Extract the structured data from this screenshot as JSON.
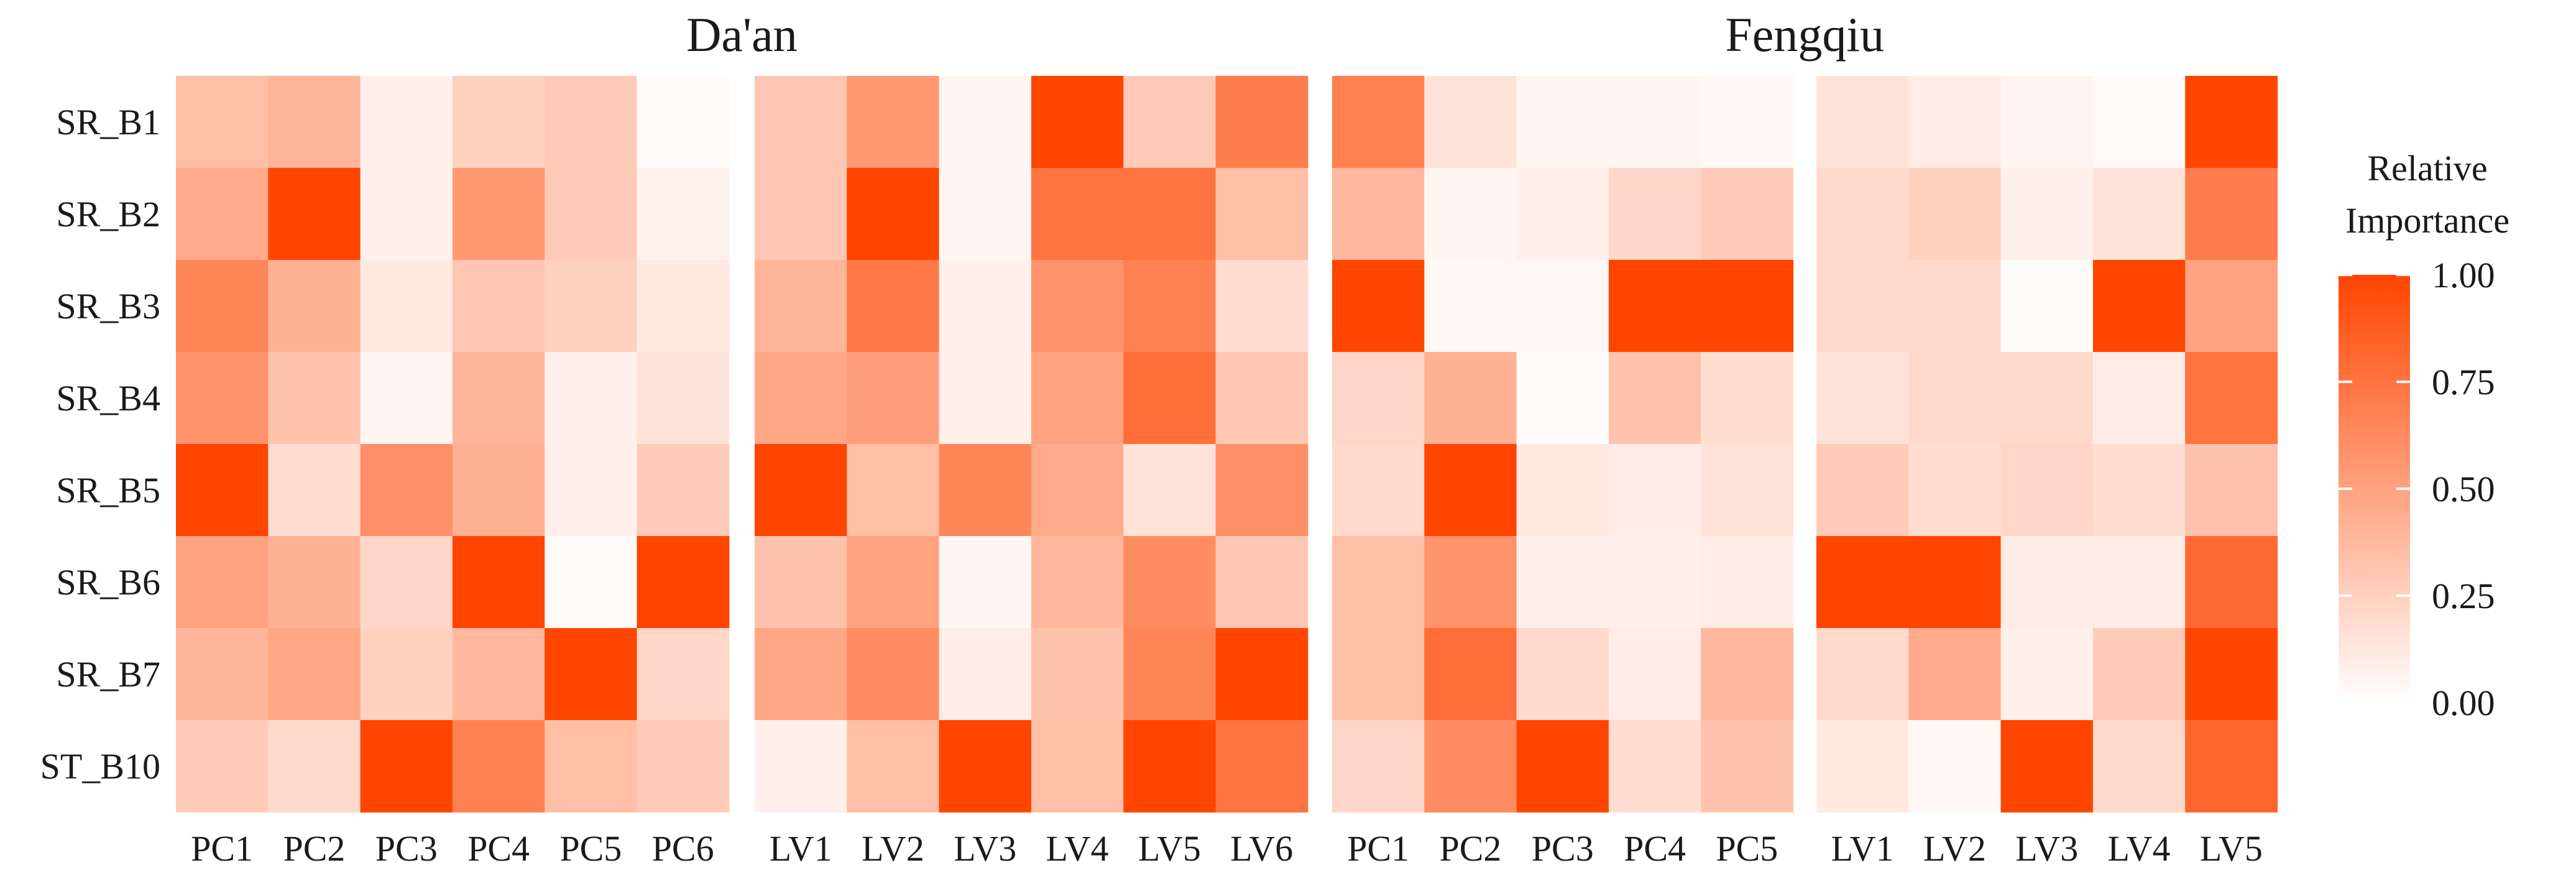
{
  "chart_data": {
    "type": "heatmap",
    "row_labels": [
      "SR_B1",
      "SR_B2",
      "SR_B3",
      "SR_B4",
      "SR_B5",
      "SR_B6",
      "SR_B7",
      "ST_B10"
    ],
    "color_low": "#ffffff",
    "color_high": "#ff4500",
    "groups": [
      {
        "title": "Da'an",
        "panels": [
          {
            "columns": [
              "PC1",
              "PC2",
              "PC3",
              "PC4",
              "PC5",
              "PC6"
            ],
            "values": [
              [
                0.35,
                0.4,
                0.08,
                0.25,
                0.28,
                0.03
              ],
              [
                0.45,
                1.0,
                0.08,
                0.55,
                0.28,
                0.07
              ],
              [
                0.65,
                0.42,
                0.12,
                0.3,
                0.25,
                0.12
              ],
              [
                0.58,
                0.32,
                0.05,
                0.4,
                0.08,
                0.15
              ],
              [
                1.0,
                0.18,
                0.6,
                0.42,
                0.08,
                0.28
              ],
              [
                0.5,
                0.42,
                0.22,
                1.0,
                0.03,
                1.0
              ],
              [
                0.4,
                0.48,
                0.25,
                0.38,
                1.0,
                0.22
              ],
              [
                0.28,
                0.2,
                1.0,
                0.68,
                0.35,
                0.28
              ]
            ]
          },
          {
            "columns": [
              "LV1",
              "LV2",
              "LV3",
              "LV4",
              "LV5",
              "LV6"
            ],
            "values": [
              [
                0.3,
                0.55,
                0.05,
                1.0,
                0.28,
                0.7
              ],
              [
                0.3,
                1.0,
                0.05,
                0.75,
                0.75,
                0.35
              ],
              [
                0.4,
                0.72,
                0.08,
                0.58,
                0.68,
                0.18
              ],
              [
                0.48,
                0.52,
                0.08,
                0.5,
                0.78,
                0.3
              ],
              [
                1.0,
                0.35,
                0.65,
                0.45,
                0.15,
                0.6
              ],
              [
                0.32,
                0.5,
                0.05,
                0.38,
                0.62,
                0.3
              ],
              [
                0.48,
                0.62,
                0.1,
                0.32,
                0.65,
                1.0
              ],
              [
                0.08,
                0.35,
                1.0,
                0.35,
                1.0,
                0.75
              ]
            ]
          }
        ]
      },
      {
        "title": "Fengqiu",
        "panels": [
          {
            "columns": [
              "PC1",
              "PC2",
              "PC3",
              "PC4",
              "PC5"
            ],
            "values": [
              [
                0.68,
                0.15,
                0.05,
                0.05,
                0.04
              ],
              [
                0.38,
                0.05,
                0.08,
                0.22,
                0.28
              ],
              [
                1.0,
                0.04,
                0.04,
                1.0,
                1.0
              ],
              [
                0.22,
                0.42,
                0.02,
                0.32,
                0.18
              ],
              [
                0.2,
                1.0,
                0.12,
                0.1,
                0.15
              ],
              [
                0.35,
                0.58,
                0.08,
                0.08,
                0.1
              ],
              [
                0.35,
                0.78,
                0.2,
                0.1,
                0.38
              ],
              [
                0.22,
                0.62,
                1.0,
                0.18,
                0.32
              ]
            ]
          },
          {
            "columns": [
              "LV1",
              "LV2",
              "LV3",
              "LV4",
              "LV5"
            ],
            "values": [
              [
                0.15,
                0.1,
                0.06,
                0.03,
                1.0
              ],
              [
                0.2,
                0.25,
                0.08,
                0.15,
                0.7
              ],
              [
                0.2,
                0.2,
                0.02,
                1.0,
                0.5
              ],
              [
                0.15,
                0.2,
                0.2,
                0.1,
                0.75
              ],
              [
                0.28,
                0.18,
                0.22,
                0.18,
                0.32
              ],
              [
                1.0,
                1.0,
                0.1,
                0.1,
                0.8
              ],
              [
                0.2,
                0.45,
                0.08,
                0.28,
                1.0
              ],
              [
                0.12,
                0.04,
                1.0,
                0.2,
                0.82
              ]
            ]
          }
        ]
      }
    ],
    "legend": {
      "title_lines": [
        "Relative",
        "Importance"
      ],
      "ticks": [
        "1.00",
        "0.75",
        "0.50",
        "0.25",
        "0.00"
      ],
      "range": [
        0,
        1
      ]
    }
  }
}
